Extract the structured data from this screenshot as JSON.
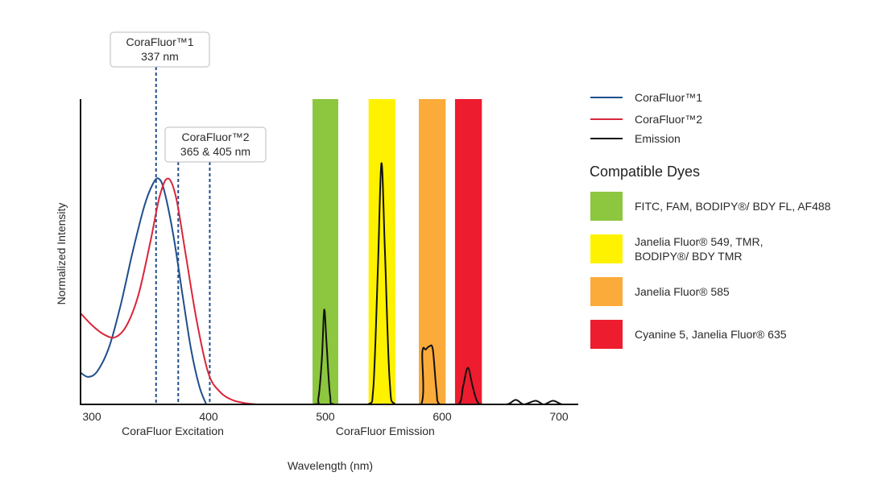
{
  "chart_data": {
    "type": "line",
    "title": "",
    "xlabel": "Wavelength (nm)",
    "ylabel": "Normalized Intensity",
    "xlim": [
      290,
      717
    ],
    "ylim": [
      0,
      1
    ],
    "x_ticks": [
      300,
      400,
      500,
      600,
      700
    ],
    "x_section_labels": [
      {
        "label": "CoraFluor Excitation",
        "center": 370
      },
      {
        "label": "CoraFluor Emission",
        "center": 552
      }
    ],
    "grid": false,
    "series": [
      {
        "name": "CoraFluor™1",
        "color": "#1f4e8c",
        "points": [
          [
            290,
            0.105
          ],
          [
            297,
            0.09
          ],
          [
            305,
            0.11
          ],
          [
            315,
            0.19
          ],
          [
            325,
            0.33
          ],
          [
            335,
            0.5
          ],
          [
            345,
            0.65
          ],
          [
            352,
            0.72
          ],
          [
            357,
            0.74
          ],
          [
            362,
            0.7
          ],
          [
            370,
            0.55
          ],
          [
            378,
            0.35
          ],
          [
            385,
            0.18
          ],
          [
            392,
            0.06
          ],
          [
            398,
            0.0
          ]
        ]
      },
      {
        "name": "CoraFluor™2",
        "color": "#d9263a",
        "points": [
          [
            290,
            0.3
          ],
          [
            300,
            0.26
          ],
          [
            310,
            0.23
          ],
          [
            320,
            0.22
          ],
          [
            330,
            0.26
          ],
          [
            340,
            0.36
          ],
          [
            350,
            0.53
          ],
          [
            358,
            0.68
          ],
          [
            365,
            0.74
          ],
          [
            372,
            0.68
          ],
          [
            380,
            0.5
          ],
          [
            390,
            0.27
          ],
          [
            400,
            0.1
          ],
          [
            410,
            0.04
          ],
          [
            420,
            0.015
          ],
          [
            430,
            0.005
          ],
          [
            442,
            0.0
          ],
          [
            450,
            0.0
          ]
        ]
      },
      {
        "name": "Emission",
        "color": "#111111",
        "points": [
          [
            450,
            0
          ],
          [
            490,
            0
          ],
          [
            494,
            0.02
          ],
          [
            497,
            0.15
          ],
          [
            499,
            0.31
          ],
          [
            501,
            0.2
          ],
          [
            504,
            0.03
          ],
          [
            508,
            0
          ],
          [
            536,
            0
          ],
          [
            541,
            0.05
          ],
          [
            545,
            0.45
          ],
          [
            548,
            0.79
          ],
          [
            551,
            0.5
          ],
          [
            555,
            0.08
          ],
          [
            560,
            0
          ],
          [
            582,
            0
          ],
          [
            583,
            0.17
          ],
          [
            586,
            0.18
          ],
          [
            589,
            0.19
          ],
          [
            592,
            0.18
          ],
          [
            595,
            0.05
          ],
          [
            598,
            0
          ],
          [
            614,
            0
          ],
          [
            618,
            0.06
          ],
          [
            622,
            0.12
          ],
          [
            626,
            0.06
          ],
          [
            630,
            0.01
          ],
          [
            635,
            0
          ],
          [
            655,
            0
          ],
          [
            663,
            0.015
          ],
          [
            670,
            0
          ],
          [
            680,
            0.012
          ],
          [
            687,
            0
          ],
          [
            695,
            0.012
          ],
          [
            703,
            0
          ],
          [
            716,
            0
          ]
        ]
      }
    ],
    "annotations": [
      {
        "lines": [
          "CoraFluor™1",
          "337 nm"
        ],
        "markers_nm": [
          355
        ]
      },
      {
        "lines": [
          "CoraFluor™2",
          "365 & 405 nm"
        ],
        "markers_nm": [
          374,
          401
        ]
      }
    ],
    "dye_bands": [
      {
        "range": [
          489,
          511
        ],
        "color": "#8dc63f",
        "label": [
          "FITC, FAM, BODIPY®/ BDY FL, AF488"
        ]
      },
      {
        "range": [
          537,
          560
        ],
        "color": "#fff200",
        "label": [
          "Janelia Fluor® 549, TMR,",
          "BODIPY®/ BDY TMR"
        ]
      },
      {
        "range": [
          580,
          603
        ],
        "color": "#fbab3a",
        "label": [
          "Janelia Fluor® 585"
        ]
      },
      {
        "range": [
          611,
          634
        ],
        "color": "#ed1c2e",
        "label": [
          "Cyanine 5, Janelia Fluor® 635"
        ]
      }
    ],
    "legend": {
      "position": "right",
      "dyes_heading": "Compatible Dyes"
    }
  }
}
